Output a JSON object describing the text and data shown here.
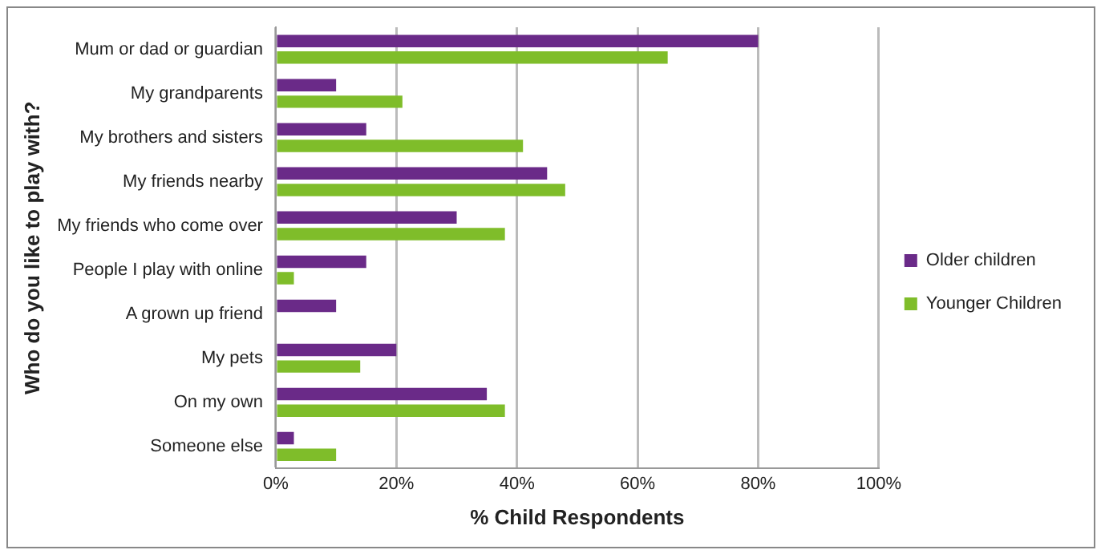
{
  "chart_data": {
    "type": "bar",
    "orientation": "horizontal",
    "xlabel": "% Child Respondents",
    "ylabel": "Who do you like to play with?",
    "categories": [
      "Mum or dad or guardian",
      "My grandparents",
      "My brothers and sisters",
      "My friends nearby",
      "My friends who come over",
      "People I play with online",
      "A grown up friend",
      "My pets",
      "On my own",
      "Someone else"
    ],
    "series": [
      {
        "name": "Older children",
        "color": "#6a2a88",
        "values": [
          80,
          10,
          15,
          45,
          30,
          15,
          10,
          20,
          35,
          3
        ]
      },
      {
        "name": "Younger Children",
        "color": "#7fbd2a",
        "values": [
          65,
          21,
          41,
          48,
          38,
          3,
          0,
          14,
          38,
          10
        ]
      }
    ],
    "xlim": [
      0,
      100
    ],
    "xticks": [
      {
        "value": 0,
        "label": "0%"
      },
      {
        "value": 20,
        "label": "20%"
      },
      {
        "value": 40,
        "label": "40%"
      },
      {
        "value": 60,
        "label": "60%"
      },
      {
        "value": 80,
        "label": "80%"
      },
      {
        "value": 100,
        "label": "100%"
      }
    ],
    "grid": "x",
    "legend": "right"
  }
}
